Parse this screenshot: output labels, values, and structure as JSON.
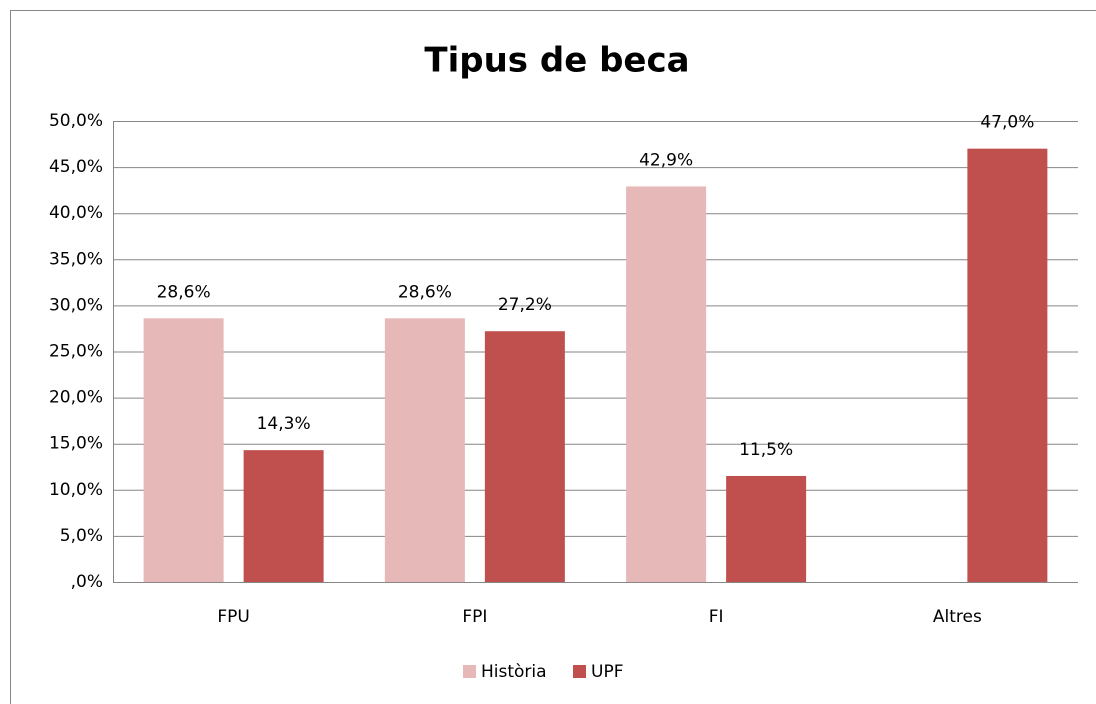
{
  "chart_data": {
    "type": "bar",
    "title": "Tipus de beca",
    "categories": [
      "FPU",
      "FPI",
      "FI",
      "Altres"
    ],
    "series": [
      {
        "name": "Història",
        "color": "#e6b8b7",
        "values": [
          28.6,
          28.6,
          42.9,
          null
        ],
        "value_labels": [
          "28,6%",
          "28,6%",
          "42,9%",
          null
        ]
      },
      {
        "name": "UPF",
        "color": "#c0504d",
        "values": [
          14.3,
          27.2,
          11.5,
          47.0
        ],
        "value_labels": [
          "14,3%",
          "27,2%",
          "11,5%",
          "47,0%"
        ]
      }
    ],
    "ylim": [
      0,
      50
    ],
    "yticks": [
      {
        "value": 0,
        "label": ",0%"
      },
      {
        "value": 5,
        "label": "5,0%"
      },
      {
        "value": 10,
        "label": "10,0%"
      },
      {
        "value": 15,
        "label": "15,0%"
      },
      {
        "value": 20,
        "label": "20,0%"
      },
      {
        "value": 25,
        "label": "25,0%"
      },
      {
        "value": 30,
        "label": "30,0%"
      },
      {
        "value": 35,
        "label": "35,0%"
      },
      {
        "value": 40,
        "label": "40,0%"
      },
      {
        "value": 45,
        "label": "45,0%"
      },
      {
        "value": 50,
        "label": "50,0%"
      }
    ],
    "grid": true,
    "legend": "bottom"
  }
}
